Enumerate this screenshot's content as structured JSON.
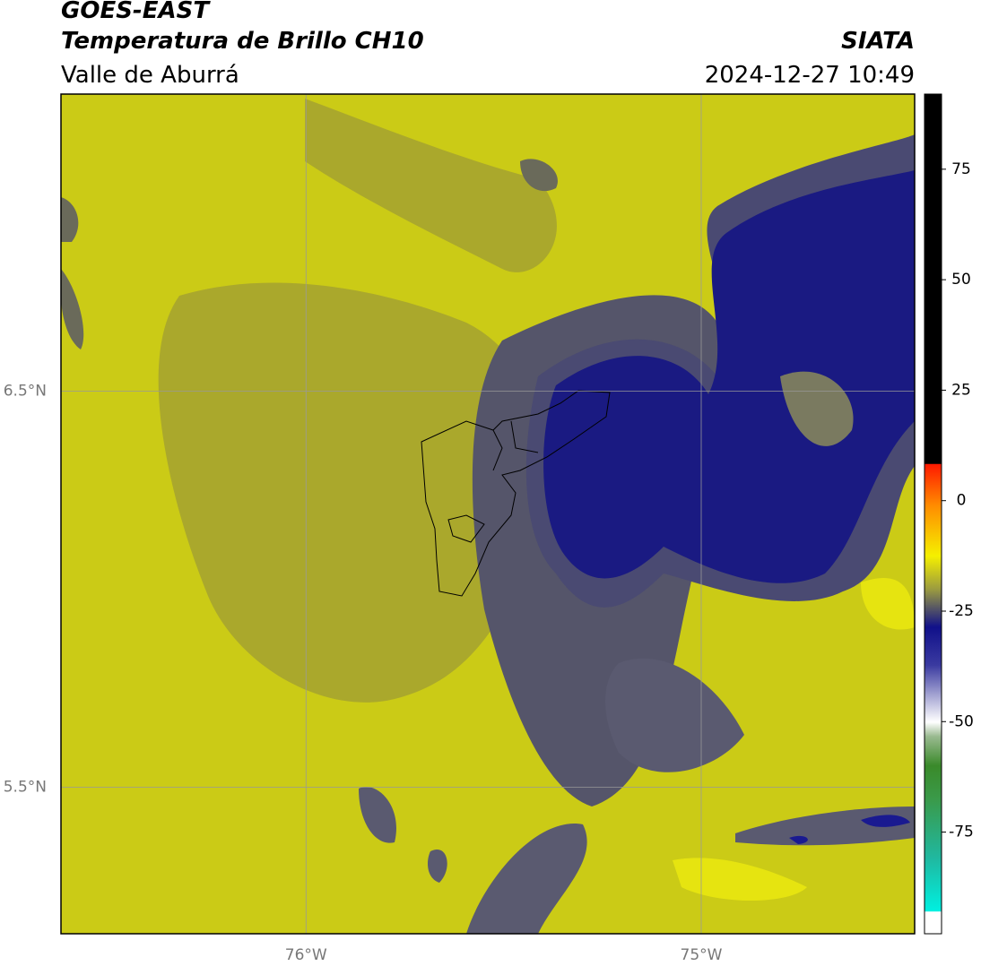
{
  "header": {
    "title": "GOES-EAST",
    "subtitle": "Temperatura de Brillo CH10",
    "region": "Valle de Aburrá",
    "source": "SIATA",
    "datetime": "2024-12-27 10:49"
  },
  "map": {
    "xlim": [
      -76.62,
      -74.46
    ],
    "ylim": [
      5.13,
      7.25
    ],
    "xticks": [
      {
        "value": -76,
        "label": "76°W"
      },
      {
        "value": -75,
        "label": "75°W"
      }
    ],
    "yticks": [
      {
        "value": 6.5,
        "label": "6.5°N"
      },
      {
        "value": 5.5,
        "label": "5.5°N"
      }
    ],
    "grid": true
  },
  "colorbar": {
    "lim": [
      -98,
      92
    ],
    "ticks": [
      75,
      50,
      25,
      0,
      -25,
      -50,
      -75
    ]
  }
}
